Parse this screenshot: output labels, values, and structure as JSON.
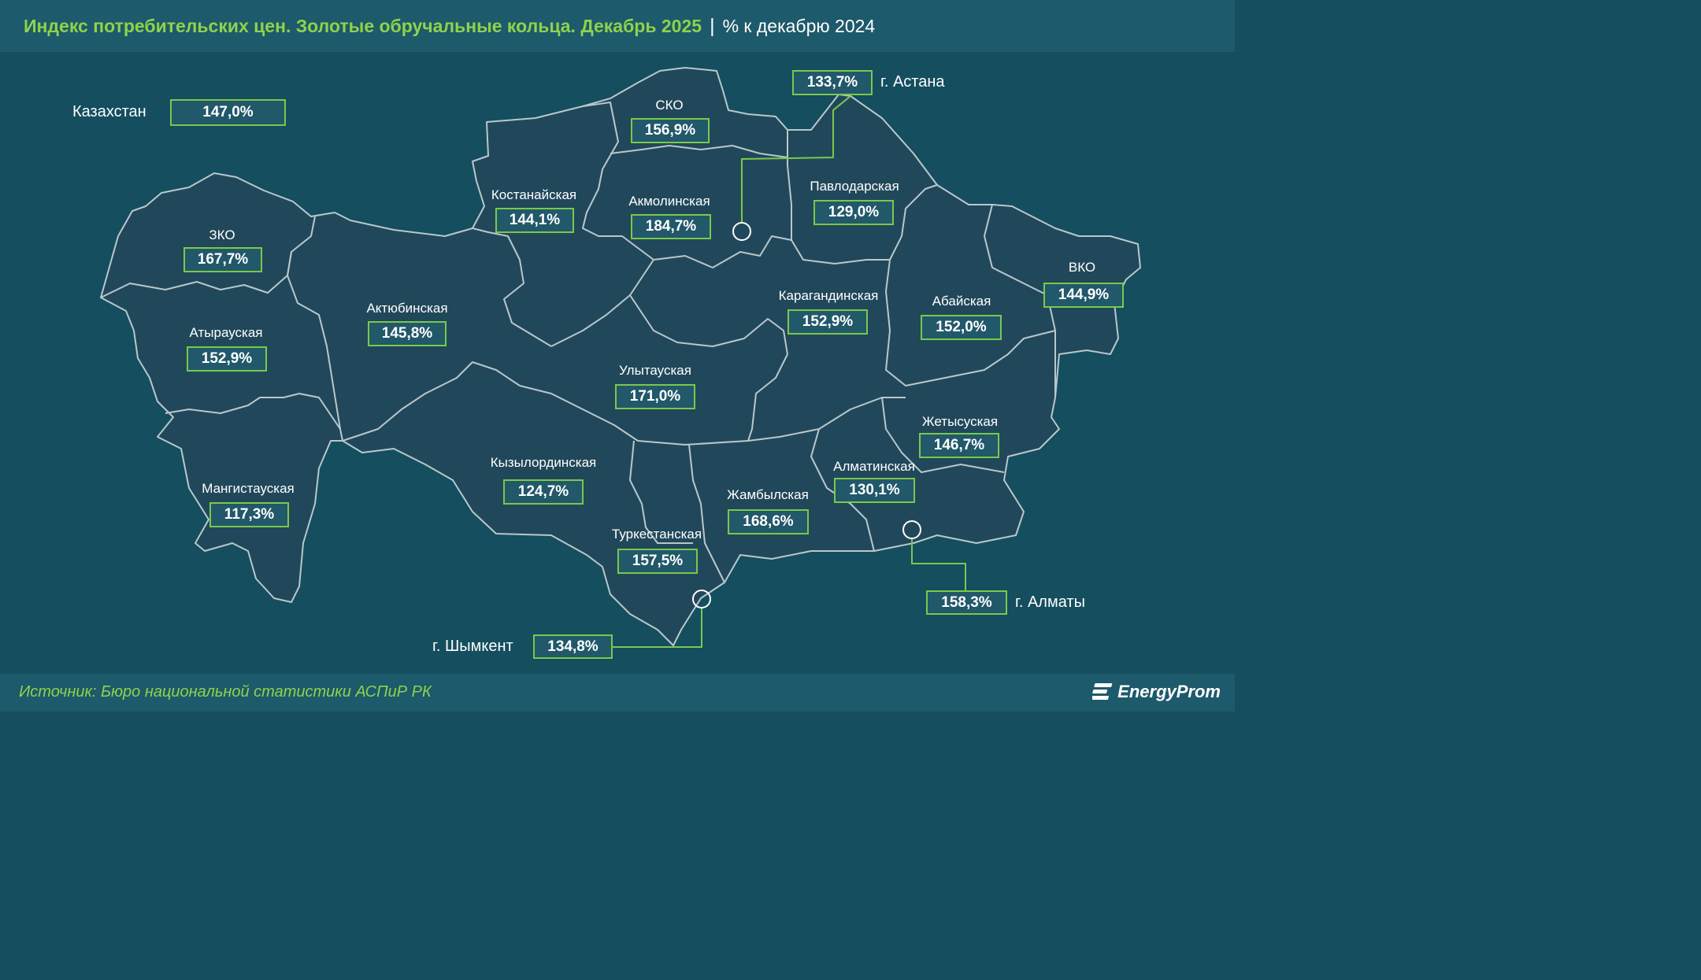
{
  "header": {
    "title": "Индекс потребительских цен. Золотые обручальные кольца. Декабрь 2025",
    "separator": "|",
    "subtitle": "% к декабрю 2024"
  },
  "kazakhstan": {
    "label": "Казахстан",
    "value": "147,0%"
  },
  "regions": {
    "sko": {
      "name": "СКО",
      "value": "156,9%"
    },
    "kostanay": {
      "name": "Костанайская",
      "value": "144,1%"
    },
    "akmola": {
      "name": "Акмолинская",
      "value": "184,7%"
    },
    "pavlodar": {
      "name": "Павлодарская",
      "value": "129,0%"
    },
    "zko": {
      "name": "ЗКО",
      "value": "167,7%"
    },
    "aktobe": {
      "name": "Актюбинская",
      "value": "145,8%"
    },
    "atyrau": {
      "name": "Атырауская",
      "value": "152,9%"
    },
    "karaganda": {
      "name": "Карагандинская",
      "value": "152,9%"
    },
    "abai": {
      "name": "Абайская",
      "value": "152,0%"
    },
    "vko": {
      "name": "ВКО",
      "value": "144,9%"
    },
    "ulytau": {
      "name": "Улытауская",
      "value": "171,0%"
    },
    "zhetysu": {
      "name": "Жетысуская",
      "value": "146,7%"
    },
    "kyzylorda": {
      "name": "Кызылординская",
      "value": "124,7%"
    },
    "mangystau": {
      "name": "Мангистауская",
      "value": "117,3%"
    },
    "almaty_reg": {
      "name": "Алматинская",
      "value": "130,1%"
    },
    "zhambyl": {
      "name": "Жамбылская",
      "value": "168,6%"
    },
    "turkestan": {
      "name": "Туркестанская",
      "value": "157,5%"
    }
  },
  "cities": {
    "astana": {
      "name": "г. Астана",
      "value": "133,7%"
    },
    "almaty": {
      "name": "г. Алматы",
      "value": "158,3%"
    },
    "shymkent": {
      "name": "г. Шымкент",
      "value": "134,8%"
    }
  },
  "footer": {
    "source": "Источник: Бюро национальной статистики АСПиР РК",
    "logo": "EnergyProm"
  },
  "colors": {
    "background": "#144e5f",
    "header_band": "#1d5a6b",
    "region_fill": "#21485a",
    "border": "#b9c7cc",
    "accent_green": "#8fd24c",
    "box_border": "#7bc84a"
  },
  "icons": [
    "city-marker-icon",
    "energyprom-logo-icon"
  ]
}
